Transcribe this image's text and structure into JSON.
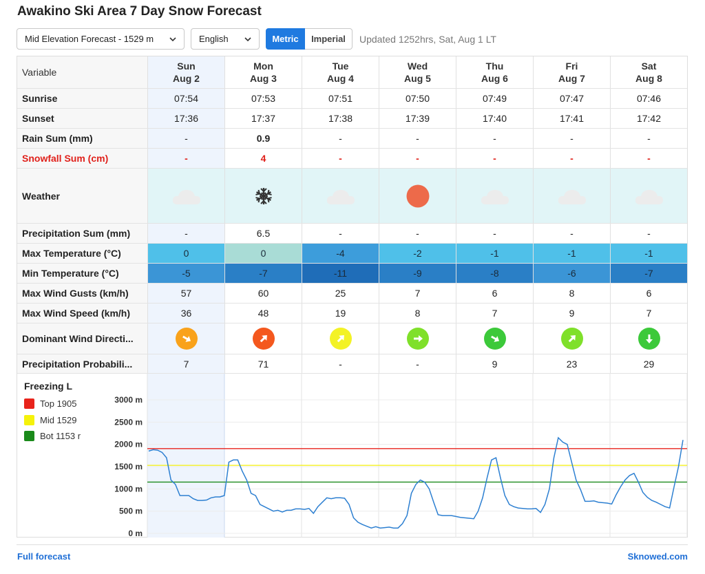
{
  "title": "Awakino Ski Area 7 Day Snow Forecast",
  "controls": {
    "elevation": "Mid Elevation Forecast - 1529 m",
    "language": "English",
    "metric": "Metric",
    "imperial": "Imperial",
    "updated": "Updated 1252hrs, Sat, Aug 1 LT"
  },
  "table": {
    "header_label": "Variable",
    "days": [
      {
        "dow": "Sun",
        "date": "Aug 2"
      },
      {
        "dow": "Mon",
        "date": "Aug 3"
      },
      {
        "dow": "Tue",
        "date": "Aug 4"
      },
      {
        "dow": "Wed",
        "date": "Aug 5"
      },
      {
        "dow": "Thu",
        "date": "Aug 6"
      },
      {
        "dow": "Fri",
        "date": "Aug 7"
      },
      {
        "dow": "Sat",
        "date": "Aug 8"
      }
    ],
    "rows": {
      "sunrise": {
        "label": "Sunrise",
        "values": [
          "07:54",
          "07:53",
          "07:51",
          "07:50",
          "07:49",
          "07:47",
          "07:46"
        ]
      },
      "sunset": {
        "label": "Sunset",
        "values": [
          "17:36",
          "17:37",
          "17:38",
          "17:39",
          "17:40",
          "17:41",
          "17:42"
        ]
      },
      "rain": {
        "label": "Rain Sum (mm)",
        "values": [
          "-",
          "0.9",
          "-",
          "-",
          "-",
          "-",
          "-"
        ]
      },
      "snowfall": {
        "label": "Snowfall Sum (cm)",
        "values": [
          "-",
          "4",
          "-",
          "-",
          "-",
          "-",
          "-"
        ]
      },
      "weather": {
        "label": "Weather",
        "icons": [
          "cloud-icon",
          "snowflake-icon",
          "cloud-icon",
          "sun-icon",
          "cloud-icon",
          "cloud-icon",
          "cloud-icon"
        ]
      },
      "precip": {
        "label": "Precipitation Sum (mm)",
        "values": [
          "-",
          "6.5",
          "-",
          "-",
          "-",
          "-",
          "-"
        ]
      },
      "maxtemp": {
        "label": "Max Temperature (°C)",
        "values": [
          "0",
          "0",
          "-4",
          "-2",
          "-1",
          "-1",
          "-1"
        ],
        "colors": [
          "#4fc0e9",
          "#a9dcd6",
          "#3d9ddb",
          "#4fc0e9",
          "#4fc0e9",
          "#4fc0e9",
          "#4fc0e9"
        ]
      },
      "mintemp": {
        "label": "Min Temperature (°C)",
        "values": [
          "-5",
          "-7",
          "-11",
          "-9",
          "-8",
          "-6",
          "-7"
        ],
        "colors": [
          "#3b95d6",
          "#2a7fc6",
          "#1f6db8",
          "#2a7fc6",
          "#2a7fc6",
          "#3b95d6",
          "#2a7fc6"
        ]
      },
      "gusts": {
        "label": "Max Wind Gusts (km/h)",
        "values": [
          "57",
          "60",
          "25",
          "7",
          "6",
          "8",
          "6"
        ]
      },
      "windspeed": {
        "label": "Max Wind Speed (km/h)",
        "values": [
          "36",
          "48",
          "19",
          "8",
          "7",
          "9",
          "7"
        ]
      },
      "winddir": {
        "label": "Dominant Wind Directi...",
        "colors": [
          "#f9a21b",
          "#f4581e",
          "#f3f226",
          "#7fe02a",
          "#3cc93a",
          "#7fe02a",
          "#3cc93a"
        ],
        "rotations": [
          30,
          -45,
          -45,
          0,
          30,
          -45,
          90
        ]
      },
      "precipprob": {
        "label": "Precipitation Probabili...",
        "values": [
          "7",
          "71",
          "-",
          "-",
          "9",
          "23",
          "29"
        ]
      }
    }
  },
  "chart_data": {
    "type": "line",
    "title": "Freezing L",
    "legend": [
      {
        "name": "Top 1905",
        "color": "#e8231b",
        "value": 1905
      },
      {
        "name": "Mid 1529",
        "color": "#f5f20a",
        "value": 1529
      },
      {
        "name": "Bot 1153 r",
        "color": "#1a8a1a",
        "value": 1153
      }
    ],
    "ylim": [
      0,
      3000
    ],
    "yticks": [
      "3000 m",
      "2500 m",
      "2000 m",
      "1500 m",
      "1000 m",
      "500 m",
      "0 m"
    ],
    "series": [
      {
        "color": "#2c7fd1",
        "values": [
          1850,
          1880,
          1870,
          1820,
          1700,
          1200,
          1100,
          850,
          850,
          850,
          780,
          740,
          740,
          750,
          800,
          820,
          820,
          850,
          1600,
          1650,
          1650,
          1400,
          1200,
          900,
          850,
          650,
          600,
          550,
          500,
          520,
          480,
          520,
          520,
          550,
          550,
          540,
          560,
          450,
          600,
          700,
          800,
          780,
          800,
          800,
          790,
          650,
          350,
          250,
          200,
          160,
          120,
          150,
          120,
          130,
          140,
          120,
          120,
          220,
          400,
          900,
          1100,
          1200,
          1150,
          1000,
          700,
          420,
          400,
          400,
          400,
          380,
          360,
          350,
          340,
          330,
          500,
          800,
          1250,
          1650,
          1700,
          1250,
          850,
          650,
          600,
          570,
          560,
          550,
          550,
          560,
          470,
          650,
          1000,
          1700,
          2150,
          2050,
          2000,
          1600,
          1200,
          980,
          720,
          720,
          730,
          700,
          690,
          680,
          660,
          870,
          1050,
          1200,
          1300,
          1350,
          1150,
          920,
          810,
          740,
          700,
          650,
          600,
          570,
          1050,
          1500,
          2100
        ]
      }
    ]
  },
  "footer": {
    "left": "Full forecast",
    "right": "Sknowed.com"
  }
}
